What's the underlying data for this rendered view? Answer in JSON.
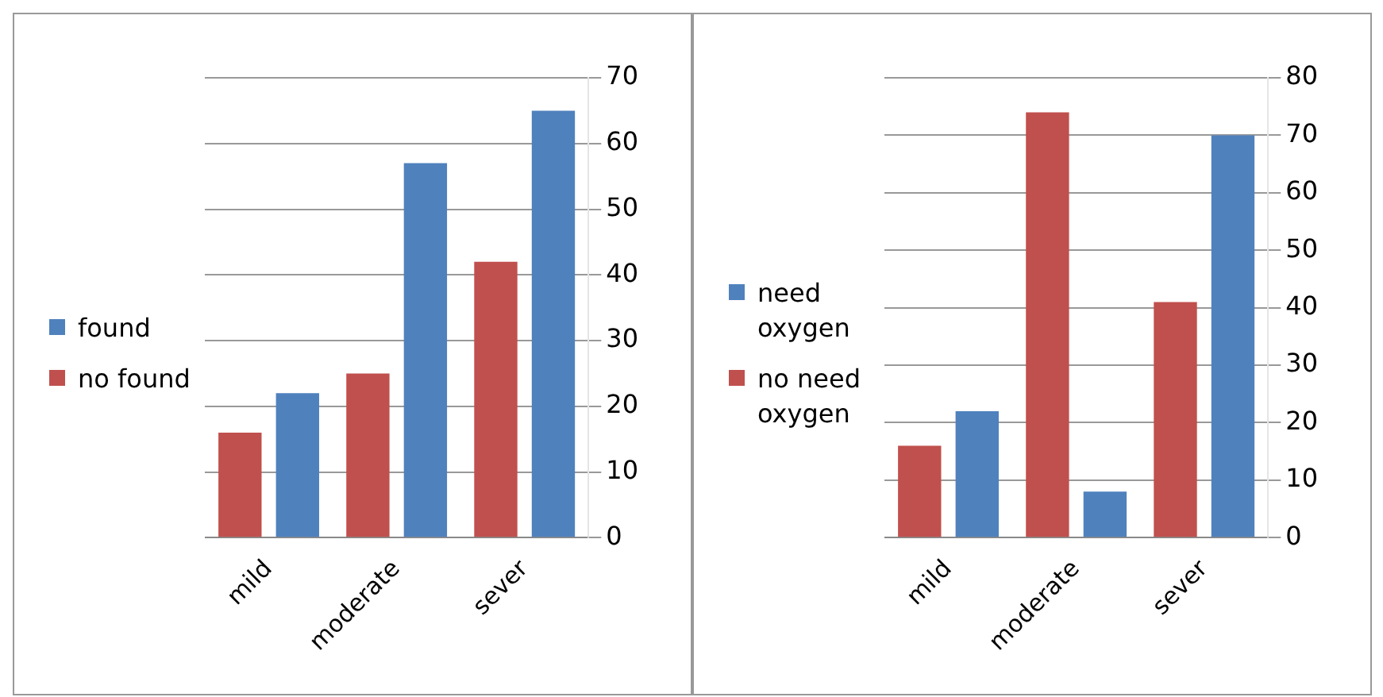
{
  "chart_data": [
    {
      "type": "bar",
      "categories": [
        "mild",
        "moderate",
        "sever"
      ],
      "series": [
        {
          "name": "no found",
          "color": "#c0504d",
          "values": [
            16,
            25,
            42
          ]
        },
        {
          "name": "found",
          "color": "#4f81bd",
          "values": [
            22,
            57,
            65
          ]
        }
      ],
      "ylim": [
        0,
        70
      ],
      "yticks": [
        0,
        10,
        20,
        30,
        40,
        50,
        60,
        70
      ],
      "grid": "y",
      "legend": "left"
    },
    {
      "type": "bar",
      "categories": [
        "mild",
        "moderate",
        "sever"
      ],
      "series": [
        {
          "name": "no need oxygen",
          "color": "#c0504d",
          "values": [
            16,
            74,
            41
          ]
        },
        {
          "name": "need oxygen",
          "color": "#4f81bd",
          "values": [
            22,
            8,
            70
          ]
        }
      ],
      "ylim": [
        0,
        80
      ],
      "yticks": [
        0,
        10,
        20,
        30,
        40,
        50,
        60,
        70,
        80
      ],
      "grid": "y",
      "legend": "left"
    }
  ]
}
